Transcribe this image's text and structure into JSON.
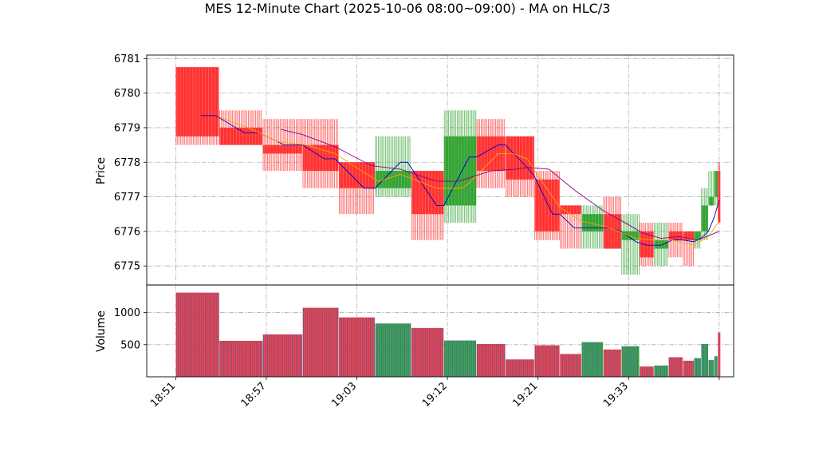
{
  "chart_data": {
    "type": "candlestick",
    "title": "MES 12-Minute Chart (2025-10-06 08:00~09:00) - MA on HLC/3",
    "price_panel": {
      "ylabel": "Price",
      "ylim": [
        6774.45,
        6781.1
      ],
      "yticks": [
        6775,
        6776,
        6777,
        6778,
        6779,
        6780,
        6781
      ],
      "grid": true
    },
    "volume_panel": {
      "ylabel": "Volume",
      "ylim": [
        0,
        1430
      ],
      "yticks": [
        500,
        1000
      ],
      "grid": true
    },
    "xlim": [
      -4,
      77
    ],
    "xticks": [
      {
        "pos": 0,
        "label": "18:51"
      },
      {
        "pos": 12.5,
        "label": "18:57"
      },
      {
        "pos": 25,
        "label": "19:03"
      },
      {
        "pos": 37.5,
        "label": "19:12"
      },
      {
        "pos": 50,
        "label": "19:21"
      },
      {
        "pos": 62.5,
        "label": "19:33"
      },
      {
        "pos": 75,
        "label": ""
      }
    ],
    "colors": {
      "up": "#2ca02c",
      "down": "#ff2a2a",
      "ma1": "#0000cc",
      "ma2": "#ffa500",
      "ma3": "#8b008b"
    },
    "candles": [
      {
        "start": 0,
        "end": 6,
        "open": 6780.75,
        "high": 6780.75,
        "low": 6778.5,
        "close": 6778.75,
        "volume": 1310
      },
      {
        "start": 6,
        "end": 12,
        "open": 6779.0,
        "high": 6779.5,
        "low": 6778.5,
        "close": 6778.5,
        "volume": 560
      },
      {
        "start": 12,
        "end": 17.5,
        "open": 6778.5,
        "high": 6779.25,
        "low": 6777.75,
        "close": 6778.25,
        "volume": 660
      },
      {
        "start": 17.5,
        "end": 22.5,
        "open": 6778.5,
        "high": 6779.25,
        "low": 6777.25,
        "close": 6777.75,
        "volume": 1075
      },
      {
        "start": 22.5,
        "end": 27.5,
        "open": 6778.0,
        "high": 6778.0,
        "low": 6776.5,
        "close": 6777.25,
        "volume": 925
      },
      {
        "start": 27.5,
        "end": 32.5,
        "open": 6777.25,
        "high": 6778.75,
        "low": 6777.0,
        "close": 6777.75,
        "volume": 830
      },
      {
        "start": 32.5,
        "end": 37,
        "open": 6777.75,
        "high": 6777.75,
        "low": 6775.75,
        "close": 6776.5,
        "volume": 760
      },
      {
        "start": 37,
        "end": 41.5,
        "open": 6776.75,
        "high": 6779.5,
        "low": 6776.25,
        "close": 6778.75,
        "volume": 565
      },
      {
        "start": 41.5,
        "end": 45.5,
        "open": 6778.75,
        "high": 6779.25,
        "low": 6777.25,
        "close": 6777.75,
        "volume": 510
      },
      {
        "start": 45.5,
        "end": 49.5,
        "open": 6778.75,
        "high": 6778.75,
        "low": 6777.0,
        "close": 6777.5,
        "volume": 270
      },
      {
        "start": 49.5,
        "end": 53,
        "open": 6777.5,
        "high": 6777.75,
        "low": 6775.75,
        "close": 6776.0,
        "volume": 490
      },
      {
        "start": 53,
        "end": 56,
        "open": 6776.75,
        "high": 6776.75,
        "low": 6775.5,
        "close": 6776.5,
        "volume": 355
      },
      {
        "start": 56,
        "end": 59,
        "open": 6776.0,
        "high": 6776.75,
        "low": 6775.5,
        "close": 6776.5,
        "volume": 540
      },
      {
        "start": 59,
        "end": 61.5,
        "open": 6776.5,
        "high": 6777.0,
        "low": 6775.5,
        "close": 6775.5,
        "volume": 425
      },
      {
        "start": 61.5,
        "end": 64,
        "open": 6775.75,
        "high": 6776.5,
        "low": 6774.75,
        "close": 6776.0,
        "volume": 475
      },
      {
        "start": 64,
        "end": 66,
        "open": 6776.0,
        "high": 6776.25,
        "low": 6775.0,
        "close": 6775.25,
        "volume": 160
      },
      {
        "start": 66,
        "end": 68,
        "open": 6775.5,
        "high": 6776.25,
        "low": 6775.0,
        "close": 6775.75,
        "volume": 175
      },
      {
        "start": 68,
        "end": 70,
        "open": 6776.0,
        "high": 6776.25,
        "low": 6775.25,
        "close": 6775.75,
        "volume": 305
      },
      {
        "start": 70,
        "end": 71.5,
        "open": 6776.0,
        "high": 6776.0,
        "low": 6775.0,
        "close": 6775.75,
        "volume": 250
      },
      {
        "start": 71.5,
        "end": 72.5,
        "open": 6775.75,
        "high": 6776.0,
        "low": 6775.5,
        "close": 6776.0,
        "volume": 290
      },
      {
        "start": 72.5,
        "end": 73.5,
        "open": 6776.0,
        "high": 6777.25,
        "low": 6775.75,
        "close": 6776.75,
        "volume": 510
      },
      {
        "start": 73.5,
        "end": 74.3,
        "open": 6776.75,
        "high": 6777.75,
        "low": 6776.75,
        "close": 6777.0,
        "volume": 260
      },
      {
        "start": 74.3,
        "end": 74.8,
        "open": 6777.0,
        "high": 6777.75,
        "low": 6776.75,
        "close": 6777.75,
        "volume": 320
      },
      {
        "start": 74.8,
        "end": 75.2,
        "open": 6777.75,
        "high": 6778.0,
        "low": 6776.25,
        "close": 6776.25,
        "volume": 690
      }
    ],
    "ma_lines": [
      {
        "color": "#0000cc",
        "points": [
          [
            3.5,
            6779.35
          ],
          [
            5.5,
            6779.35
          ],
          [
            9.5,
            6778.85
          ],
          [
            11.5,
            6778.85
          ],
          [
            15,
            6778.5
          ],
          [
            17.5,
            6778.5
          ],
          [
            20.5,
            6778.1
          ],
          [
            22,
            6778.1
          ],
          [
            26,
            6777.25
          ],
          [
            27.5,
            6777.25
          ],
          [
            31,
            6778.0
          ],
          [
            32,
            6778.0
          ],
          [
            36,
            6776.75
          ],
          [
            37,
            6776.75
          ],
          [
            40.5,
            6778.15
          ],
          [
            41.5,
            6778.15
          ],
          [
            44.5,
            6778.5
          ],
          [
            45.5,
            6778.5
          ],
          [
            48.5,
            6777.85
          ],
          [
            49.5,
            6777.6
          ],
          [
            52,
            6776.5
          ],
          [
            53,
            6776.5
          ],
          [
            55,
            6776.1
          ],
          [
            59,
            6776.1
          ],
          [
            60,
            6776.1
          ],
          [
            61.5,
            6776.0
          ],
          [
            63.5,
            6775.7
          ],
          [
            65,
            6775.6
          ],
          [
            67,
            6775.6
          ],
          [
            68.5,
            6775.75
          ],
          [
            70,
            6775.75
          ],
          [
            71.5,
            6775.7
          ],
          [
            72.5,
            6775.8
          ],
          [
            73.5,
            6776.0
          ],
          [
            74.3,
            6776.4
          ],
          [
            75,
            6776.9
          ]
        ]
      },
      {
        "color": "#ffa500",
        "points": [
          [
            6,
            6779.3
          ],
          [
            10,
            6779.0
          ],
          [
            14,
            6778.6
          ],
          [
            18,
            6778.5
          ],
          [
            22,
            6778.25
          ],
          [
            26,
            6777.7
          ],
          [
            28,
            6777.45
          ],
          [
            31,
            6777.65
          ],
          [
            36,
            6777.25
          ],
          [
            39.5,
            6777.25
          ],
          [
            40.5,
            6777.4
          ],
          [
            44.5,
            6778.25
          ],
          [
            46.5,
            6778.25
          ],
          [
            48.5,
            6778.1
          ],
          [
            51,
            6777.3
          ],
          [
            53,
            6776.7
          ],
          [
            56,
            6776.3
          ],
          [
            60,
            6776.1
          ],
          [
            63.5,
            6775.8
          ],
          [
            66,
            6775.75
          ],
          [
            68.5,
            6775.75
          ],
          [
            71.5,
            6775.6
          ],
          [
            73.5,
            6775.85
          ],
          [
            75,
            6776.3
          ]
        ]
      },
      {
        "color": "#8b008b",
        "points": [
          [
            14.5,
            6778.95
          ],
          [
            17.5,
            6778.8
          ],
          [
            22,
            6778.45
          ],
          [
            27,
            6777.9
          ],
          [
            31,
            6777.8
          ],
          [
            36,
            6777.45
          ],
          [
            39,
            6777.45
          ],
          [
            43.5,
            6777.75
          ],
          [
            47,
            6777.8
          ],
          [
            48.5,
            6777.85
          ],
          [
            51.5,
            6777.8
          ],
          [
            55,
            6777.2
          ],
          [
            59,
            6776.6
          ],
          [
            62,
            6776.25
          ],
          [
            64.5,
            6775.95
          ],
          [
            67,
            6775.8
          ],
          [
            69.5,
            6775.85
          ],
          [
            72,
            6775.75
          ],
          [
            75,
            6776.0
          ]
        ]
      }
    ]
  }
}
